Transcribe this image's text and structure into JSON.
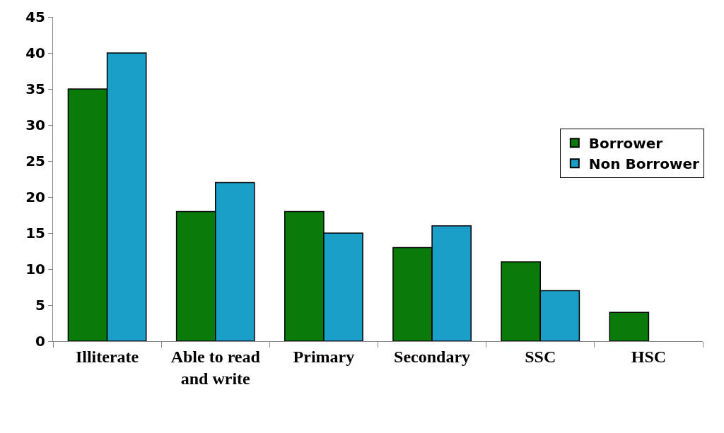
{
  "chart_data": {
    "type": "bar",
    "categories": [
      "Illiterate",
      "Able to read and write",
      "Primary",
      "Secondary",
      "SSC",
      "HSC"
    ],
    "series": [
      {
        "name": "Borrower",
        "color": "#0a7a0a",
        "values": [
          35,
          18,
          18,
          13,
          11,
          4
        ]
      },
      {
        "name": "Non Borrower",
        "color": "#1a9fc9",
        "values": [
          40,
          22,
          15,
          16,
          7,
          null
        ]
      }
    ],
    "ylim": [
      0,
      45
    ],
    "yticks": [
      0,
      5,
      10,
      15,
      20,
      25,
      30,
      35,
      40,
      45
    ],
    "legend": "right"
  }
}
